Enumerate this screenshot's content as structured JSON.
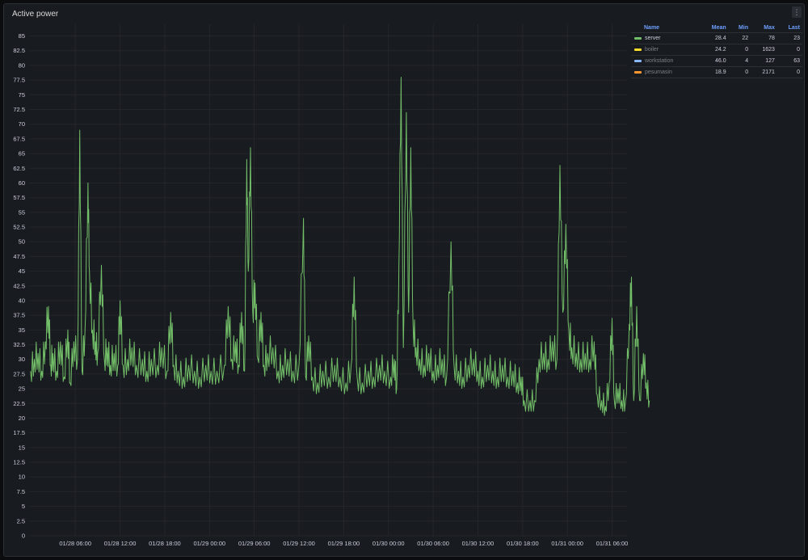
{
  "panel": {
    "title": "Active power",
    "menu_icon": "kebab-menu-icon"
  },
  "chart_data": {
    "type": "line",
    "title": "Active power",
    "ylim": [
      0,
      87
    ],
    "yticks": [
      0,
      2.5,
      5,
      7.5,
      10,
      12.5,
      15,
      17.5,
      20,
      22.5,
      25,
      27.5,
      30,
      32.5,
      35,
      37.5,
      40,
      42.5,
      45,
      47.5,
      50,
      52.5,
      55,
      57.5,
      60,
      62.5,
      65,
      67.5,
      70,
      72.5,
      75,
      77.5,
      80,
      82.5,
      85
    ],
    "xticks": [
      "01/28 06:00",
      "01/28 12:00",
      "01/28 18:00",
      "01/29 00:00",
      "01/29 06:00",
      "01/29 12:00",
      "01/29 18:00",
      "01/30 00:00",
      "01/30 06:00",
      "01/30 12:00",
      "01/30 18:00",
      "01/31 00:00",
      "01/31 06:00"
    ],
    "x_range_hours": [
      -3.2,
      77
    ],
    "grid": true,
    "legend_placement": "right",
    "series": [
      {
        "name": "server",
        "color": "#73bf69",
        "points": [
          [
            -3.0,
            28
          ],
          [
            -2.5,
            30
          ],
          [
            -2.0,
            31
          ],
          [
            -1.5,
            28
          ],
          [
            -1.0,
            33
          ],
          [
            -0.6,
            39
          ],
          [
            -0.3,
            29
          ],
          [
            0,
            31
          ],
          [
            0.5,
            28
          ],
          [
            1.0,
            33
          ],
          [
            1.5,
            27
          ],
          [
            2.0,
            35
          ],
          [
            2.3,
            26
          ],
          [
            2.8,
            33
          ],
          [
            3.3,
            30
          ],
          [
            3.6,
            69
          ],
          [
            3.9,
            28
          ],
          [
            4.3,
            35
          ],
          [
            4.7,
            60
          ],
          [
            4.9,
            45
          ],
          [
            5.3,
            35
          ],
          [
            5.7,
            33
          ],
          [
            6.0,
            31
          ],
          [
            6.5,
            46
          ],
          [
            6.9,
            30
          ],
          [
            7.3,
            32
          ],
          [
            7.7,
            29
          ],
          [
            8.2,
            31
          ],
          [
            8.7,
            29
          ],
          [
            9.0,
            40
          ],
          [
            9.4,
            29
          ],
          [
            10,
            30
          ],
          [
            10.6,
            32
          ],
          [
            11.2,
            29
          ],
          [
            12,
            30
          ],
          [
            12.6,
            28
          ],
          [
            13.2,
            30
          ],
          [
            14,
            29
          ],
          [
            14.6,
            32
          ],
          [
            15.3,
            28
          ],
          [
            15.8,
            38
          ],
          [
            16.2,
            29
          ],
          [
            16.8,
            28
          ],
          [
            17.5,
            27
          ],
          [
            18.2,
            29
          ],
          [
            19,
            28
          ],
          [
            19.7,
            27
          ],
          [
            20.5,
            29
          ],
          [
            21.2,
            28
          ],
          [
            22,
            28
          ],
          [
            23,
            29
          ],
          [
            23.5,
            39
          ],
          [
            24,
            30
          ],
          [
            24.5,
            33
          ],
          [
            24.9,
            29
          ],
          [
            25.3,
            38
          ],
          [
            25.7,
            28
          ],
          [
            26.0,
            64
          ],
          [
            26.2,
            45
          ],
          [
            26.5,
            66
          ],
          [
            26.8,
            38
          ],
          [
            27.1,
            43
          ],
          [
            27.5,
            30
          ],
          [
            27.9,
            38
          ],
          [
            28.3,
            29
          ],
          [
            28.8,
            31
          ],
          [
            29.5,
            32
          ],
          [
            30.2,
            28
          ],
          [
            30.8,
            29
          ],
          [
            31.5,
            30
          ],
          [
            32.2,
            28
          ],
          [
            33,
            29
          ],
          [
            33.6,
            54
          ],
          [
            33.9,
            27
          ],
          [
            34.3,
            34
          ],
          [
            34.8,
            27
          ],
          [
            35.5,
            26
          ],
          [
            36.2,
            28
          ],
          [
            37,
            27
          ],
          [
            37.8,
            29
          ],
          [
            38.5,
            27
          ],
          [
            39.3,
            26
          ],
          [
            40,
            29
          ],
          [
            40.4,
            44
          ],
          [
            40.8,
            27
          ],
          [
            41.5,
            26
          ],
          [
            42.3,
            28
          ],
          [
            43,
            27
          ],
          [
            43.8,
            29
          ],
          [
            44.5,
            28
          ],
          [
            45.3,
            27
          ],
          [
            45.8,
            30
          ],
          [
            46.1,
            25
          ],
          [
            46.4,
            46
          ],
          [
            46.7,
            78
          ],
          [
            47,
            32
          ],
          [
            47.4,
            72
          ],
          [
            47.7,
            38
          ],
          [
            48.0,
            66
          ],
          [
            48.3,
            36
          ],
          [
            48.7,
            32
          ],
          [
            49.2,
            30
          ],
          [
            49.8,
            29
          ],
          [
            50.4,
            31
          ],
          [
            51,
            28
          ],
          [
            51.6,
            29
          ],
          [
            52.2,
            30
          ],
          [
            52.8,
            27
          ],
          [
            53.4,
            50
          ],
          [
            53.8,
            29
          ],
          [
            54.4,
            28
          ],
          [
            55,
            27
          ],
          [
            55.7,
            29
          ],
          [
            56.4,
            30
          ],
          [
            57,
            28
          ],
          [
            57.6,
            27
          ],
          [
            58.3,
            29
          ],
          [
            59,
            28
          ],
          [
            59.6,
            27
          ],
          [
            60.3,
            29
          ],
          [
            61,
            27
          ],
          [
            61.7,
            28
          ],
          [
            62.3,
            26
          ],
          [
            62.8,
            27
          ],
          [
            63.2,
            23
          ],
          [
            64.0,
            23
          ],
          [
            64.6,
            23
          ],
          [
            65.2,
            30
          ],
          [
            65.8,
            31
          ],
          [
            66.4,
            30
          ],
          [
            67,
            33
          ],
          [
            67.6,
            30
          ],
          [
            68.0,
            63
          ],
          [
            68.4,
            38
          ],
          [
            68.8,
            53
          ],
          [
            69.2,
            35
          ],
          [
            69.6,
            32
          ],
          [
            70.2,
            31
          ],
          [
            70.8,
            30
          ],
          [
            71.4,
            31
          ],
          [
            72,
            30
          ],
          [
            72.6,
            33
          ],
          [
            73,
            24
          ],
          [
            73.6,
            23
          ],
          [
            74.1,
            22
          ],
          [
            74.6,
            26
          ],
          [
            75.0,
            37
          ],
          [
            75.3,
            23
          ],
          [
            75.8,
            25
          ],
          [
            76.3,
            23
          ],
          [
            76.8,
            23
          ],
          [
            77.3,
            36
          ],
          [
            77.6,
            44
          ],
          [
            77.9,
            23
          ],
          [
            78.3,
            39
          ],
          [
            78.7,
            23
          ],
          [
            79.2,
            31
          ],
          [
            79.6,
            26
          ],
          [
            80,
            23
          ]
        ]
      }
    ],
    "legend": {
      "columns": [
        "Name",
        "Mean",
        "Min",
        "Max",
        "Last"
      ],
      "rows": [
        {
          "name": "server",
          "color": "#73bf69",
          "mean": "28.4",
          "min": "22",
          "max": "78",
          "last": "23",
          "dim": false
        },
        {
          "name": "boiler",
          "color": "#fade2a",
          "mean": "24.2",
          "min": "0",
          "max": "1623",
          "last": "0",
          "dim": true
        },
        {
          "name": "workstation",
          "color": "#8ab8ff",
          "mean": "46.0",
          "min": "4",
          "max": "127",
          "last": "63",
          "dim": true
        },
        {
          "name": "pesumasin",
          "color": "#ff9830",
          "mean": "18.9",
          "min": "0",
          "max": "2171",
          "last": "0",
          "dim": true
        }
      ]
    }
  }
}
